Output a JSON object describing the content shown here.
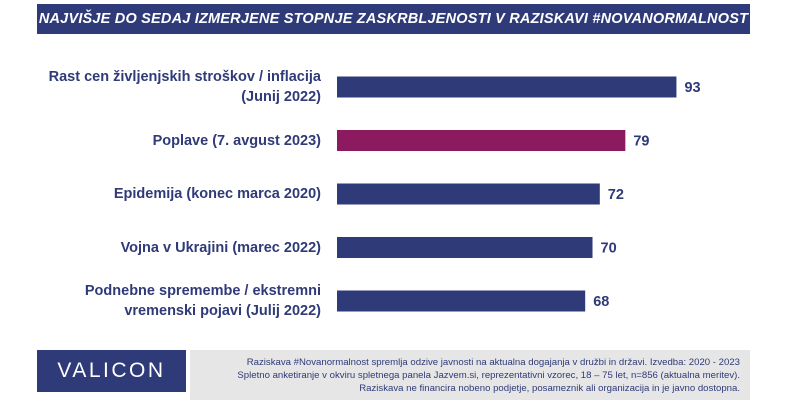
{
  "header": {
    "title": "NAJVIŠJE DO SEDAJ IZMERJENE STOPNJE ZASKRBLJENOSTI V RAZISKAVI #NOVANORMALNOST"
  },
  "brand": {
    "logo_text": "VALICON",
    "color": "#2f3a78",
    "highlight_color": "#8b1a5e"
  },
  "footnote": {
    "lines": [
      "Raziskava #Novanormalnost spremlja odzive javnosti na aktualna dogajanja v družbi in državi. Izvedba: 2020 - 2023",
      "Spletno anketiranje v okviru spletnega panela Jazvem.si, reprezentativni vzorec, 18 – 75 let, n=856 (aktualna meritev).",
      "Raziskava ne financira nobeno podjetje, posameznik ali organizacija in je javno dostopna."
    ]
  },
  "chart_data": {
    "type": "bar",
    "orientation": "horizontal",
    "title": "NAJVIŠJE DO SEDAJ IZMERJENE STOPNJE ZASKRBLJENOSTI V RAZISKAVI #NOVANORMALNOST",
    "categories": [
      [
        "Rast cen življenjskih stroškov / inflacija",
        "(Junij 2022)"
      ],
      [
        "Poplave (7. avgust 2023)"
      ],
      [
        "Epidemija (konec marca 2020)"
      ],
      [
        "Vojna v Ukrajini (marec 2022)"
      ],
      [
        "Podnebne spremembe / ekstremni",
        "vremenski pojavi (Julij 2022)"
      ]
    ],
    "values": [
      93,
      79,
      72,
      70,
      68
    ],
    "value_labels": [
      "93",
      "79",
      "72",
      "70",
      "68"
    ],
    "highlighted_index": 1,
    "colors": [
      "#2f3a78",
      "#8b1a5e",
      "#2f3a78",
      "#2f3a78",
      "#2f3a78"
    ],
    "xlim": [
      0,
      100
    ],
    "grid": false,
    "legend": "none"
  }
}
